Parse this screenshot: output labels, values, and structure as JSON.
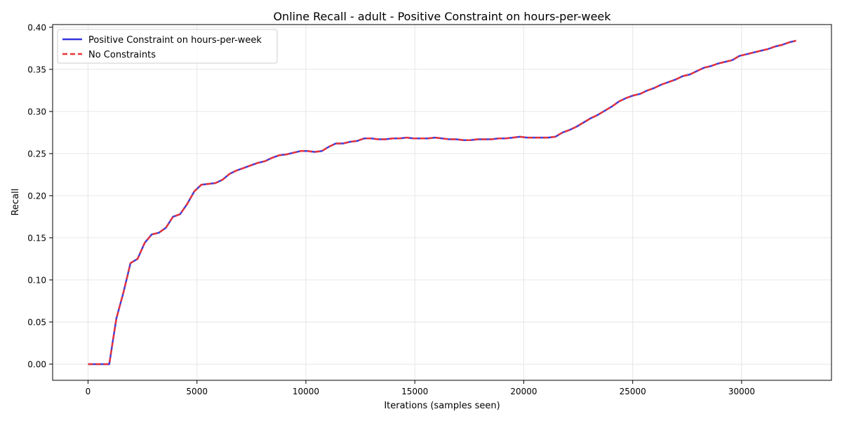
{
  "chart_data": {
    "type": "line",
    "title": "Online Recall - adult - Positive Constraint on hours-per-week",
    "xlabel": "Iterations (samples seen)",
    "ylabel": "Recall",
    "xlim": [
      -1625,
      34125
    ],
    "ylim": [
      -0.0192,
      0.4032
    ],
    "xticks": [
      0,
      5000,
      10000,
      15000,
      20000,
      25000,
      30000
    ],
    "xtick_labels": [
      "0",
      "5000",
      "10000",
      "15000",
      "20000",
      "25000",
      "30000"
    ],
    "yticks": [
      0.0,
      0.05,
      0.1,
      0.15,
      0.2,
      0.25,
      0.3,
      0.35,
      0.4
    ],
    "ytick_labels": [
      "0.00",
      "0.05",
      "0.10",
      "0.15",
      "0.20",
      "0.25",
      "0.30",
      "0.35",
      "0.40"
    ],
    "grid": true,
    "legend_position": "top-left",
    "x": [
      0,
      325,
      650,
      975,
      1300,
      1625,
      1950,
      2275,
      2600,
      2925,
      3250,
      3575,
      3900,
      4225,
      4550,
      4875,
      5200,
      5525,
      5850,
      6175,
      6500,
      6825,
      7150,
      7475,
      7800,
      8125,
      8450,
      8775,
      9100,
      9425,
      9750,
      10075,
      10400,
      10725,
      11050,
      11375,
      11700,
      12025,
      12350,
      12675,
      13000,
      13325,
      13650,
      13975,
      14300,
      14625,
      14950,
      15275,
      15600,
      15925,
      16250,
      16575,
      16900,
      17225,
      17550,
      17875,
      18200,
      18525,
      18850,
      19175,
      19500,
      19825,
      20150,
      20475,
      20800,
      21125,
      21450,
      21775,
      22100,
      22425,
      22750,
      23075,
      23400,
      23725,
      24050,
      24375,
      24700,
      25025,
      25350,
      25675,
      26000,
      26325,
      26650,
      26975,
      27300,
      27625,
      27950,
      28275,
      28600,
      28925,
      29250,
      29575,
      29900,
      30225,
      30550,
      30875,
      31200,
      31525,
      31850,
      32175,
      32500
    ],
    "series": [
      {
        "name": "Positive Constraint on hours-per-week",
        "color": "#3333dd",
        "style": "solid",
        "values": [
          0.0,
          0.0,
          0.0,
          0.0,
          0.054,
          0.085,
          0.12,
          0.125,
          0.144,
          0.154,
          0.156,
          0.162,
          0.175,
          0.178,
          0.19,
          0.205,
          0.213,
          0.214,
          0.215,
          0.219,
          0.226,
          0.23,
          0.233,
          0.236,
          0.239,
          0.241,
          0.245,
          0.248,
          0.249,
          0.251,
          0.253,
          0.253,
          0.252,
          0.253,
          0.258,
          0.262,
          0.262,
          0.264,
          0.265,
          0.268,
          0.268,
          0.267,
          0.267,
          0.268,
          0.268,
          0.269,
          0.268,
          0.268,
          0.268,
          0.269,
          0.268,
          0.267,
          0.267,
          0.266,
          0.266,
          0.267,
          0.267,
          0.267,
          0.268,
          0.268,
          0.269,
          0.27,
          0.269,
          0.269,
          0.269,
          0.269,
          0.27,
          0.275,
          0.278,
          0.282,
          0.287,
          0.292,
          0.296,
          0.301,
          0.306,
          0.312,
          0.316,
          0.319,
          0.321,
          0.325,
          0.328,
          0.332,
          0.335,
          0.338,
          0.342,
          0.344,
          0.348,
          0.352,
          0.354,
          0.357,
          0.359,
          0.361,
          0.366,
          0.368,
          0.37,
          0.372,
          0.374,
          0.377,
          0.379,
          0.382,
          0.384
        ]
      },
      {
        "name": "No Constraints",
        "color": "#ee3333",
        "style": "dashed",
        "values": [
          0.0,
          0.0,
          0.0,
          0.0,
          0.054,
          0.085,
          0.12,
          0.125,
          0.144,
          0.154,
          0.156,
          0.162,
          0.175,
          0.178,
          0.19,
          0.205,
          0.213,
          0.214,
          0.215,
          0.219,
          0.226,
          0.23,
          0.233,
          0.236,
          0.239,
          0.241,
          0.245,
          0.248,
          0.249,
          0.251,
          0.253,
          0.253,
          0.252,
          0.253,
          0.258,
          0.262,
          0.262,
          0.264,
          0.265,
          0.268,
          0.268,
          0.267,
          0.267,
          0.268,
          0.268,
          0.269,
          0.268,
          0.268,
          0.268,
          0.269,
          0.268,
          0.267,
          0.267,
          0.266,
          0.266,
          0.267,
          0.267,
          0.267,
          0.268,
          0.268,
          0.269,
          0.27,
          0.269,
          0.269,
          0.269,
          0.269,
          0.27,
          0.275,
          0.278,
          0.282,
          0.287,
          0.292,
          0.296,
          0.301,
          0.306,
          0.312,
          0.316,
          0.319,
          0.321,
          0.325,
          0.328,
          0.332,
          0.335,
          0.338,
          0.342,
          0.344,
          0.348,
          0.352,
          0.354,
          0.357,
          0.359,
          0.361,
          0.366,
          0.368,
          0.37,
          0.372,
          0.374,
          0.377,
          0.379,
          0.382,
          0.384
        ]
      }
    ]
  }
}
